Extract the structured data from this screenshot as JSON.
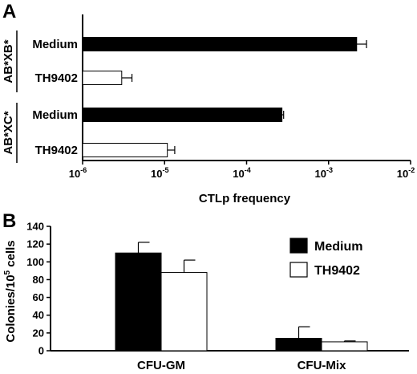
{
  "chart_data": [
    {
      "panel": "A",
      "type": "bar",
      "orientation": "horizontal",
      "xscale": "log",
      "xlabel": "CTLp frequency",
      "xlim": [
        1e-06,
        0.01
      ],
      "xticks": [
        {
          "base": "10",
          "exp": "-6",
          "value": 1e-06
        },
        {
          "base": "10",
          "exp": "-5",
          "value": 1e-05
        },
        {
          "base": "10",
          "exp": "-4",
          "value": 0.0001
        },
        {
          "base": "10",
          "exp": "-3",
          "value": 0.001
        },
        {
          "base": "10",
          "exp": "-2",
          "value": 0.01
        }
      ],
      "groups": [
        {
          "label": "AB*XB*",
          "bars": [
            {
              "label": "Medium",
              "value": 0.0022,
              "error": 0.0007,
              "fill": "#000000"
            },
            {
              "label": "TH9402",
              "value": 3e-06,
              "error": 1e-06,
              "fill": "#ffffff"
            }
          ]
        },
        {
          "label": "AB*XC*",
          "bars": [
            {
              "label": "Medium",
              "value": 0.00027,
              "error": 1.3e-05,
              "fill": "#000000"
            },
            {
              "label": "TH9402",
              "value": 1.08e-05,
              "error": 2.5e-06,
              "fill": "#ffffff"
            }
          ]
        }
      ],
      "grid": false
    },
    {
      "panel": "B",
      "type": "bar",
      "ylabel": {
        "pre": "Colonies/10",
        "sup": "5",
        "post": " cells"
      },
      "ylim": [
        0,
        140
      ],
      "yticks": [
        0,
        20,
        40,
        60,
        80,
        100,
        120,
        140
      ],
      "categories": [
        "CFU-GM",
        "CFU-Mix"
      ],
      "series": [
        {
          "name": "Medium",
          "values": [
            110,
            14
          ],
          "errors": [
            12,
            13
          ],
          "fill": "#000000"
        },
        {
          "name": "TH9402",
          "values": [
            88,
            10
          ],
          "errors": [
            14,
            1
          ],
          "fill": "#ffffff"
        }
      ],
      "legend": "top-right",
      "grid": false
    }
  ]
}
